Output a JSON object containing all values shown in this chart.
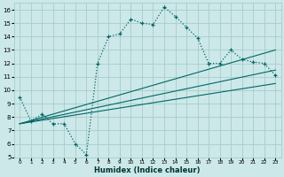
{
  "xlabel": "Humidex (Indice chaleur)",
  "bg_color": "#cce8e8",
  "grid_color": "#a8cccc",
  "line_color": "#006666",
  "xlim": [
    -0.5,
    23.5
  ],
  "ylim": [
    5,
    16.5
  ],
  "xticks": [
    0,
    1,
    2,
    3,
    4,
    5,
    6,
    7,
    8,
    9,
    10,
    11,
    12,
    13,
    14,
    15,
    16,
    17,
    18,
    19,
    20,
    21,
    22,
    23
  ],
  "yticks": [
    5,
    6,
    7,
    8,
    9,
    10,
    11,
    12,
    13,
    14,
    15,
    16
  ],
  "main_x": [
    0,
    1,
    2,
    3,
    4,
    5,
    6,
    7,
    8,
    9,
    10,
    11,
    12,
    13,
    14,
    15,
    16,
    17,
    18,
    19,
    20,
    21,
    22,
    23
  ],
  "main_y": [
    9.5,
    7.7,
    8.2,
    7.5,
    7.5,
    6.0,
    5.2,
    12.0,
    14.0,
    14.2,
    15.3,
    15.0,
    14.9,
    16.2,
    15.5,
    14.7,
    13.9,
    12.0,
    12.0,
    13.0,
    12.3,
    12.1,
    12.0,
    11.1
  ],
  "trend1_x": [
    0,
    23
  ],
  "trend1_y": [
    7.5,
    13.0
  ],
  "trend2_x": [
    0,
    23
  ],
  "trend2_y": [
    7.5,
    11.5
  ],
  "trend3_x": [
    0,
    23
  ],
  "trend3_y": [
    7.5,
    10.5
  ]
}
